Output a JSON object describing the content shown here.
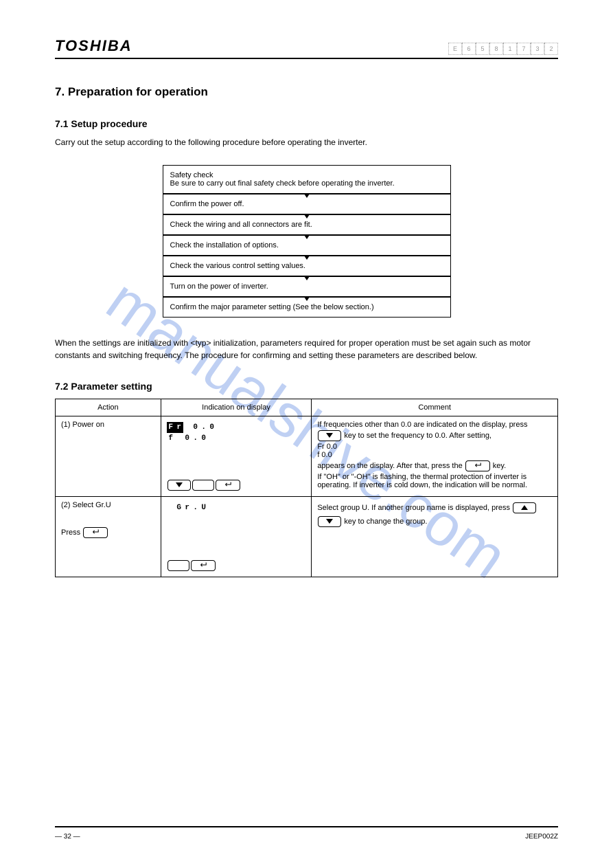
{
  "header": {
    "brand": "TOSHIBA",
    "part_number": [
      "E",
      "6",
      "5",
      "8",
      "1",
      "7",
      "3",
      "2"
    ]
  },
  "section": {
    "heading": "7. Preparation for operation",
    "sub_heading": "7.1 Setup procedure",
    "intro": "Carry out the setup according to the following procedure before operating the inverter."
  },
  "flowchart": {
    "steps": [
      "Safety check\nBe sure to carry out final safety check before operating the inverter.",
      "Confirm the power off.",
      "Check the wiring and all connectors are fit.",
      "Check the installation of options.",
      "Check the various control setting values.",
      "Turn on the power of inverter.",
      "Confirm the major parameter setting (See the below section.)"
    ]
  },
  "after_flow": "When the settings are initialized with <typ> initialization, parameters required for proper operation must be set again such as motor constants and switching frequency. The procedure for confirming and setting these parameters are described below.",
  "table_heading": "7.2 Parameter setting",
  "table": {
    "columns": [
      "Action",
      "Indication on display",
      "Comment"
    ],
    "rows": [
      {
        "action_steps": [
          "(1) Power on"
        ],
        "lcd_lines": [
          [
            [
              "F",
              "r",
              "",
              " 0",
              ".",
              "0",
              " ",
              " ",
              " ",
              " ",
              " ",
              ""
            ],
            [
              "f",
              "",
              "0",
              ".",
              " 0",
              " ",
              " ",
              " ",
              " ",
              " ",
              " ",
              " ",
              ""
            ]
          ]
        ],
        "lcd_highlight": {
          "row": 0,
          "cols": [
            0,
            1
          ]
        },
        "comment": "If frequencies other than 0.0 are indicated on the display, press ▼ key to set the frequency to 0.0. After setting,\n  Fr    0.0\n  f       0.0\nappears on the display. After that, press the ↵ key.\nIf \"OH\" or \"-OH\" is flashing, the thermal protection of inverter is operating. If inverter is cold down, the indication will be normal.",
        "key_row": [
          "down",
          "blank",
          "enter"
        ]
      },
      {
        "action_steps": [
          "(2) Select Gr.U",
          "Press ↵"
        ],
        "lcd_lines": [
          [
            [
              "",
              "G",
              "r",
              ".",
              "U",
              " ",
              " ",
              " ",
              " ",
              " ",
              " ",
              " ",
              ""
            ],
            [
              "",
              "",
              "",
              "",
              "",
              "",
              "",
              "",
              "",
              "",
              "",
              "",
              ""
            ]
          ]
        ],
        "comment": "Select group U. If another group name is displayed, press ▲ ▼ key to change the group.",
        "key_row": [
          "blank",
          "",
          "enter"
        ]
      }
    ]
  },
  "footer": {
    "left": "—  32  —",
    "right": "JEEP002Z"
  },
  "watermark": "manualshive.com"
}
